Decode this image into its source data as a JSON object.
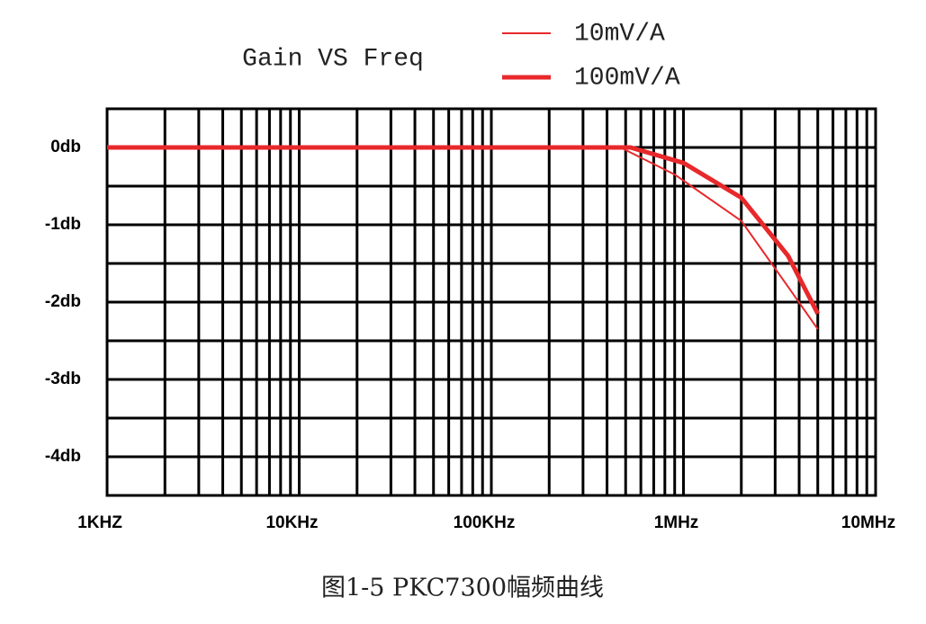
{
  "chart_data": {
    "type": "line",
    "title": "Gain VS Freq",
    "caption": "图1-5 PKC7300幅频曲线",
    "xscale": "log",
    "xlim": [
      1000,
      10000000
    ],
    "xticks": [
      {
        "value": 1000,
        "label": "1KHZ"
      },
      {
        "value": 10000,
        "label": "10KHz"
      },
      {
        "value": 100000,
        "label": "100KHz"
      },
      {
        "value": 1000000,
        "label": "1MHz"
      },
      {
        "value": 10000000,
        "label": "10MHz"
      }
    ],
    "x_minor_grid": [
      2000,
      3000,
      4000,
      5000,
      6000,
      7000,
      8000,
      9000,
      20000,
      30000,
      40000,
      50000,
      60000,
      70000,
      80000,
      90000,
      200000,
      300000,
      400000,
      500000,
      600000,
      700000,
      800000,
      900000,
      2000000,
      3000000,
      4000000,
      5000000,
      6000000,
      7000000,
      8000000,
      9000000
    ],
    "ylim": [
      -4.5,
      0.5
    ],
    "yticks": [
      {
        "value": 0,
        "label": "0db"
      },
      {
        "value": -1,
        "label": "-1db"
      },
      {
        "value": -2,
        "label": "-2db"
      },
      {
        "value": -3,
        "label": "-3db"
      },
      {
        "value": -4,
        "label": "-4db"
      }
    ],
    "y_minor_grid": [
      0.5,
      -0.5,
      -1.5,
      -2.5,
      -3.5,
      -4.5
    ],
    "grid": true,
    "legend": "top-right",
    "series": [
      {
        "name": "10mV/A",
        "color": "#e8282b",
        "line_width": 2,
        "x": [
          1000,
          470000,
          900000,
          2000000,
          3500000,
          5000000
        ],
        "values": [
          0,
          0,
          -0.35,
          -0.95,
          -1.8,
          -2.35
        ]
      },
      {
        "name": "100mV/A",
        "color": "#e8282b",
        "line_width": 5,
        "x": [
          1000,
          530000,
          1000000,
          2000000,
          3500000,
          5000000
        ],
        "values": [
          0,
          0,
          -0.2,
          -0.65,
          -1.4,
          -2.15
        ]
      }
    ]
  }
}
